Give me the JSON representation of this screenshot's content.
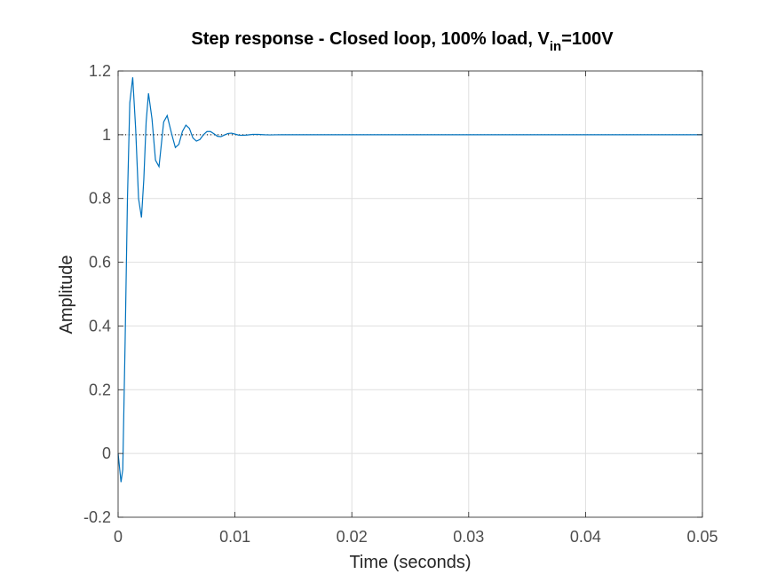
{
  "chart_data": {
    "type": "line",
    "title": {
      "main": "Step response - Closed loop, 100% load, V",
      "subscript": "in",
      "suffix": "=100V"
    },
    "xlabel": "Time (seconds)",
    "ylabel": "Amplitude",
    "xlim": [
      0,
      0.05
    ],
    "ylim": [
      -0.2,
      1.2
    ],
    "xticks": [
      0,
      0.01,
      0.02,
      0.03,
      0.04,
      0.05
    ],
    "xtick_labels": [
      "0",
      "0.01",
      "0.02",
      "0.03",
      "0.04",
      "0.05"
    ],
    "yticks": [
      -0.2,
      0,
      0.2,
      0.4,
      0.6,
      0.8,
      1,
      1.2
    ],
    "ytick_labels": [
      "-0.2",
      "0",
      "0.2",
      "0.4",
      "0.6",
      "0.8",
      "1",
      "1.2"
    ],
    "grid": true,
    "reference_line": {
      "y": 1,
      "style": "dotted",
      "color": "#000000"
    },
    "series": [
      {
        "color": "#0072BD",
        "x": [
          0,
          0.00025,
          0.0004,
          0.0006,
          0.0008,
          0.001,
          0.00125,
          0.0015,
          0.00175,
          0.002,
          0.0022,
          0.0024,
          0.0026,
          0.0029,
          0.0032,
          0.0035,
          0.0037,
          0.0039,
          0.0042,
          0.0046,
          0.0049,
          0.0052,
          0.0055,
          0.0058,
          0.0061,
          0.0064,
          0.0067,
          0.007,
          0.0073,
          0.0076,
          0.0079,
          0.0082,
          0.0085,
          0.0088,
          0.0091,
          0.0094,
          0.0097,
          0.01,
          0.0103,
          0.0106,
          0.011,
          0.0115,
          0.012,
          0.0125,
          0.013,
          0.0135,
          0.014,
          0.015,
          0.016,
          0.018,
          0.02,
          0.025,
          0.03,
          0.035,
          0.04,
          0.045,
          0.05
        ],
        "y": [
          0,
          -0.09,
          -0.05,
          0.35,
          0.8,
          1.1,
          1.18,
          1.02,
          0.8,
          0.74,
          0.86,
          1.04,
          1.13,
          1.05,
          0.92,
          0.9,
          0.97,
          1.04,
          1.06,
          1.0,
          0.96,
          0.97,
          1.01,
          1.03,
          1.02,
          0.99,
          0.98,
          0.985,
          1.0,
          1.01,
          1.01,
          1.003,
          0.995,
          0.994,
          0.999,
          1.004,
          1.005,
          1.002,
          0.999,
          0.998,
          0.999,
          1.001,
          1.001,
          1.0,
          0.9995,
          0.9998,
          1.0,
          1.0,
          1.0,
          1.0,
          1.0,
          1.0,
          1.0,
          1.0,
          1.0,
          1.0,
          1.0
        ]
      }
    ]
  }
}
